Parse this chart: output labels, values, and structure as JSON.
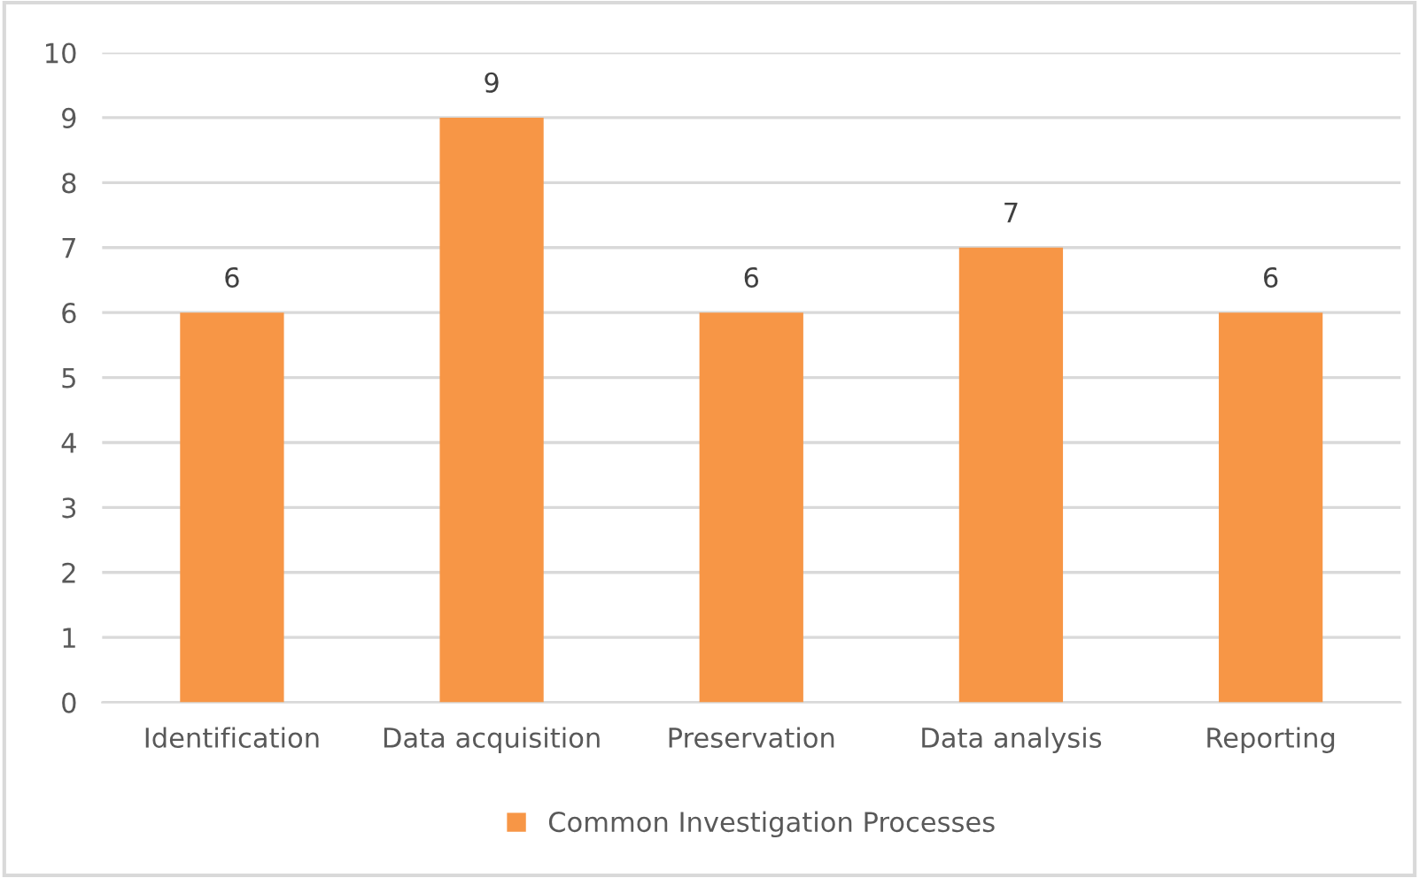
{
  "chart_data": {
    "type": "bar",
    "categories": [
      "Identification",
      "Data acquisition",
      "Preservation",
      "Data analysis",
      "Reporting"
    ],
    "series": [
      {
        "name": "Common Investigation Processes",
        "color": "#f79646",
        "values": [
          6,
          9,
          6,
          7,
          6
        ]
      }
    ],
    "ylim": [
      0,
      10
    ],
    "yticks": [
      0,
      1,
      2,
      3,
      4,
      5,
      6,
      7,
      8,
      9,
      10
    ],
    "grid": "y",
    "legend": "bottom",
    "data_labels": true
  }
}
